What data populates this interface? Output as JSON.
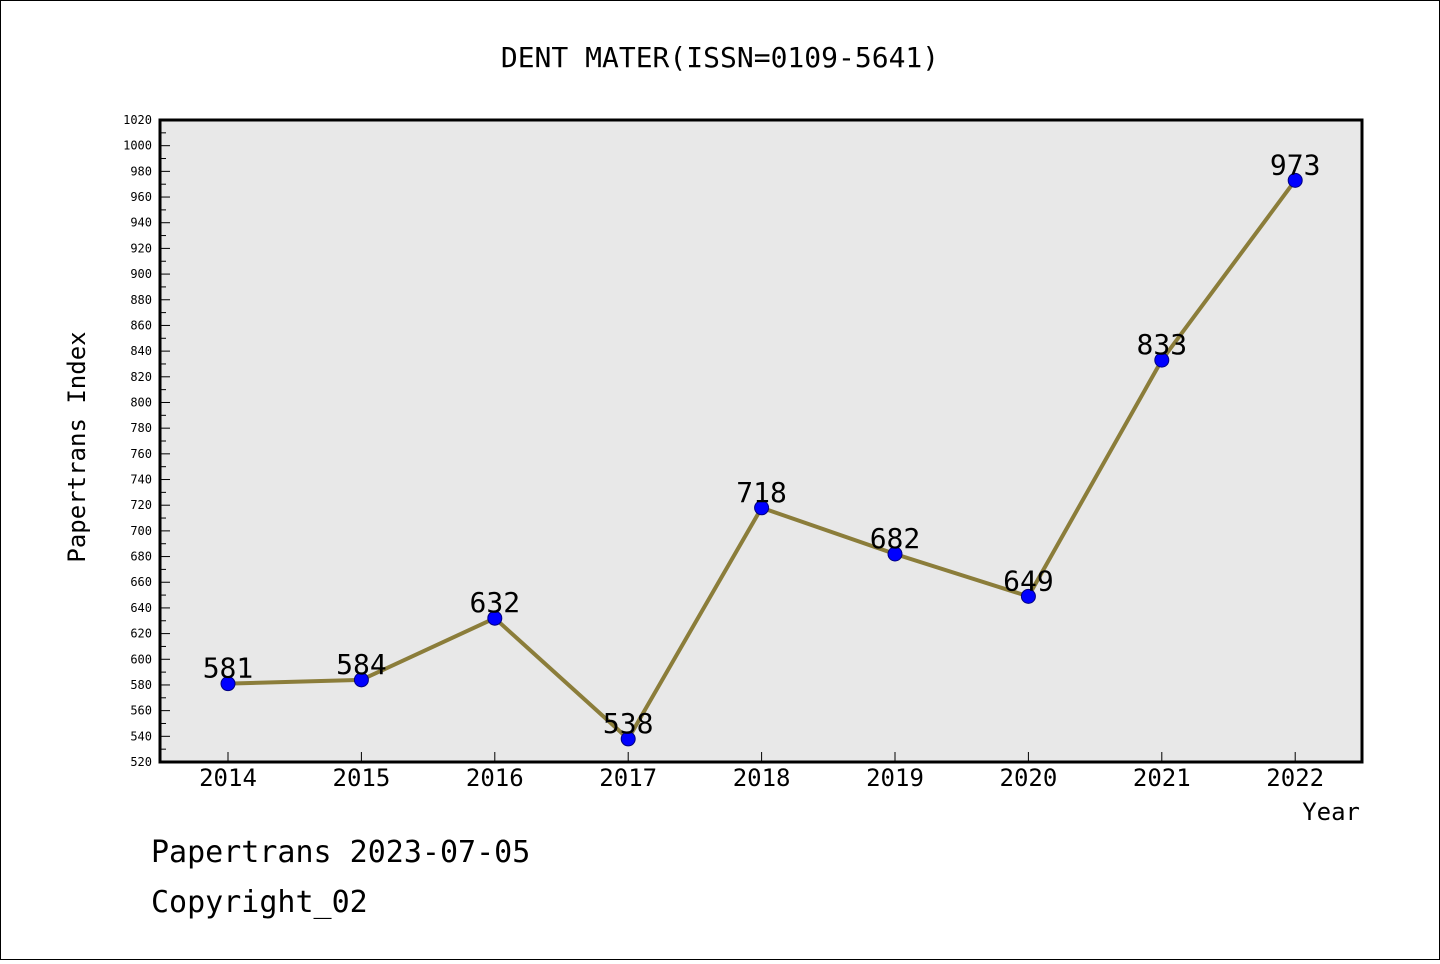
{
  "chart_data": {
    "type": "line",
    "title": "DENT MATER(ISSN=0109-5641)",
    "xlabel": "Year",
    "ylabel": "Papertrans Index",
    "categories": [
      "2014",
      "2015",
      "2016",
      "2017",
      "2018",
      "2019",
      "2020",
      "2021",
      "2022"
    ],
    "values": [
      581,
      584,
      632,
      538,
      718,
      682,
      649,
      833,
      973
    ],
    "ylim": [
      520,
      1020
    ],
    "y_major_step": 20,
    "y_minor_step": 10,
    "grid": false,
    "plot_background": "#e8e8e8",
    "line_color": "#8b7d3a",
    "marker_color": "#0000ff",
    "marker_edge_color": "#000080"
  },
  "footer": {
    "line1": "Papertrans 2023-07-05",
    "line2": "Copyright_02"
  }
}
